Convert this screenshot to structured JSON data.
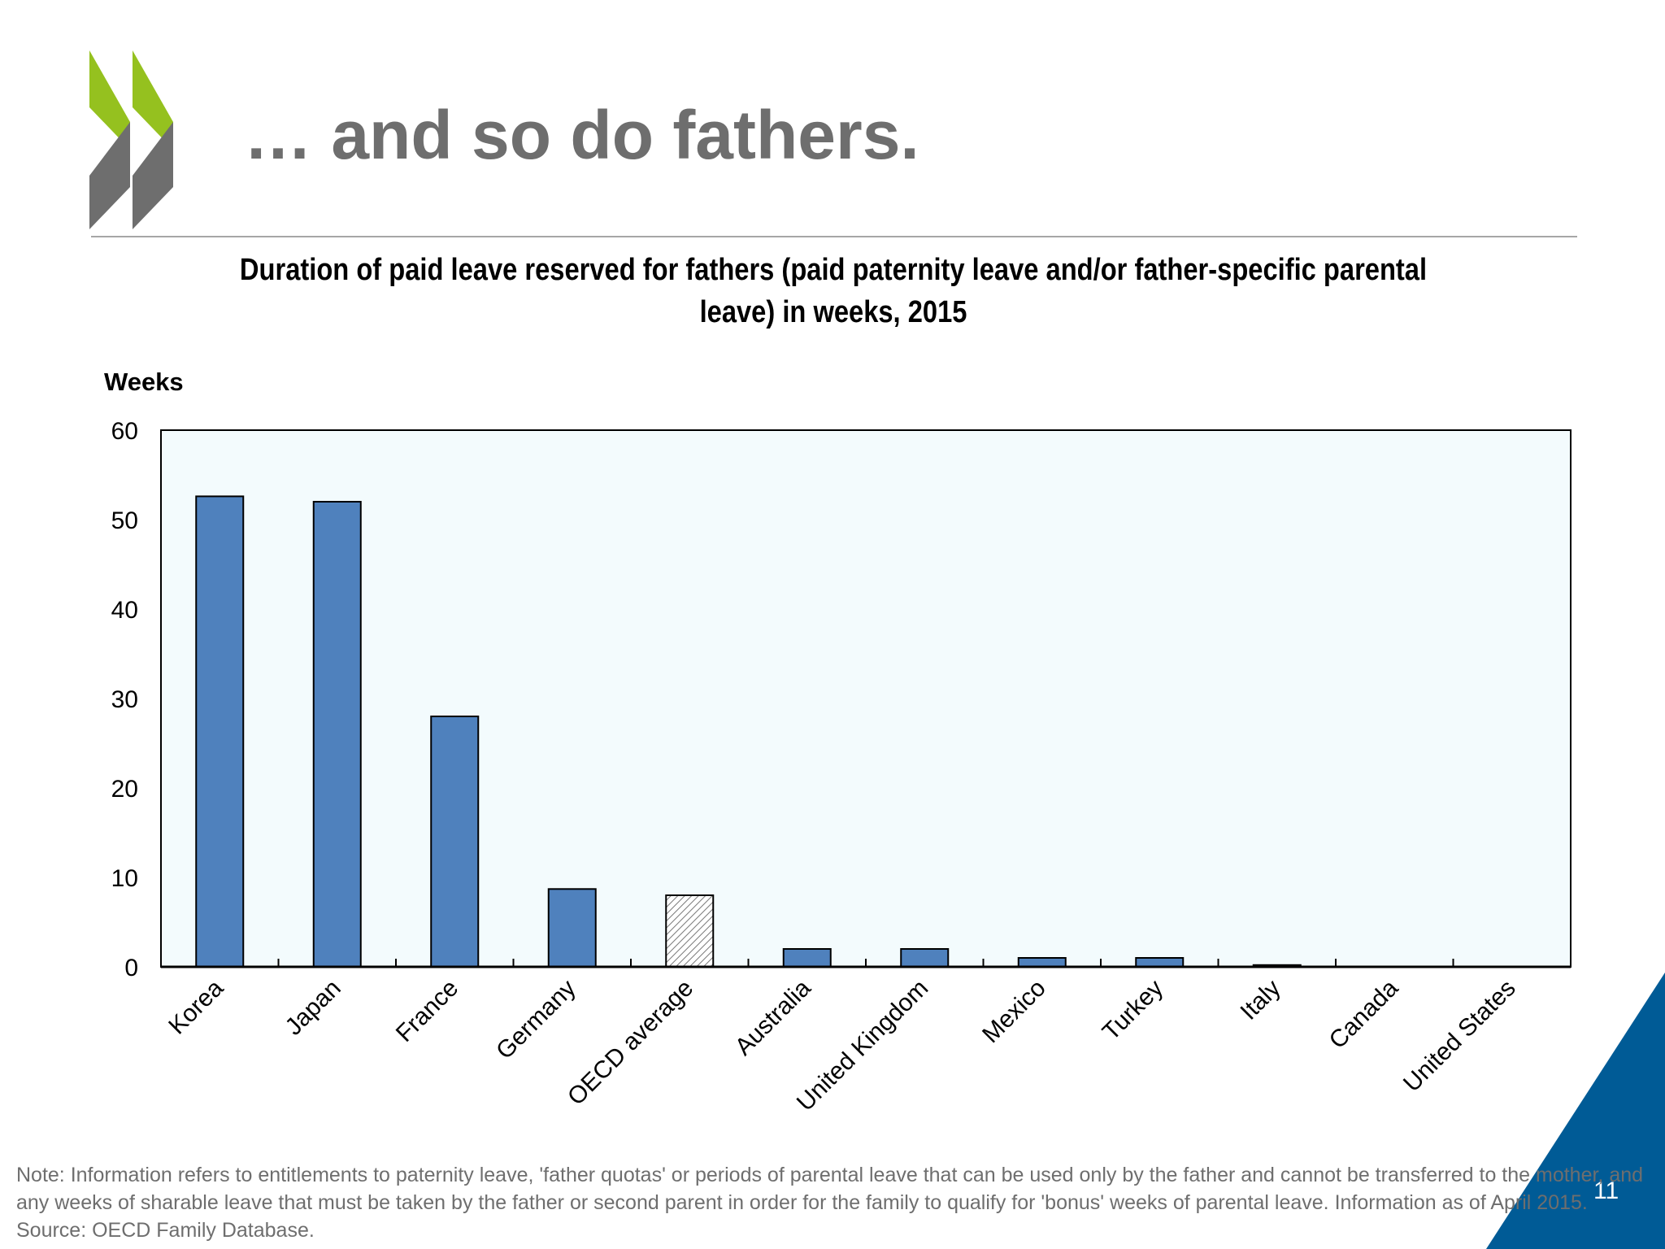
{
  "slide": {
    "title": "… and so do fathers.",
    "page_number": "11",
    "note_lines": [
      "Note: Information refers to entitlements to paternity leave, 'father quotas' or periods of parental leave that can be used only by the father and cannot be transferred to the mother, and",
      "any weeks of sharable leave that must be taken by the father or second parent in order for the family to qualify for 'bonus' weeks of parental leave. Information as of April 2015.",
      "Source: OECD Family Database."
    ]
  },
  "colors": {
    "bar": "#4f81bd",
    "plot_background": "#f3fbfd",
    "logo_green": "#95c11f",
    "logo_grey": "#6e6e6e",
    "corner_blue": "#005b96"
  },
  "icons": {
    "logo": "oecd-chevron-logo"
  },
  "chart_data": {
    "type": "bar",
    "title": "Duration of paid leave reserved for fathers (paid paternity leave and/or father-specific parental leave) in weeks, 2015",
    "ylabel": "Weeks",
    "xlabel": "",
    "ylim": [
      0,
      60
    ],
    "yticks": [
      0,
      10,
      20,
      30,
      40,
      50,
      60
    ],
    "grid": false,
    "legend": "none",
    "categories": [
      "Korea",
      "Japan",
      "France",
      "Germany",
      "OECD average",
      "Australia",
      "United Kingdom",
      "Mexico",
      "Turkey",
      "Italy",
      "Canada",
      "United States"
    ],
    "values": [
      52.6,
      52.0,
      28.0,
      8.7,
      8.0,
      2.0,
      2.0,
      1.0,
      1.0,
      0.2,
      0,
      0
    ],
    "highlight": {
      "category": "OECD average",
      "style": "hatched"
    }
  }
}
